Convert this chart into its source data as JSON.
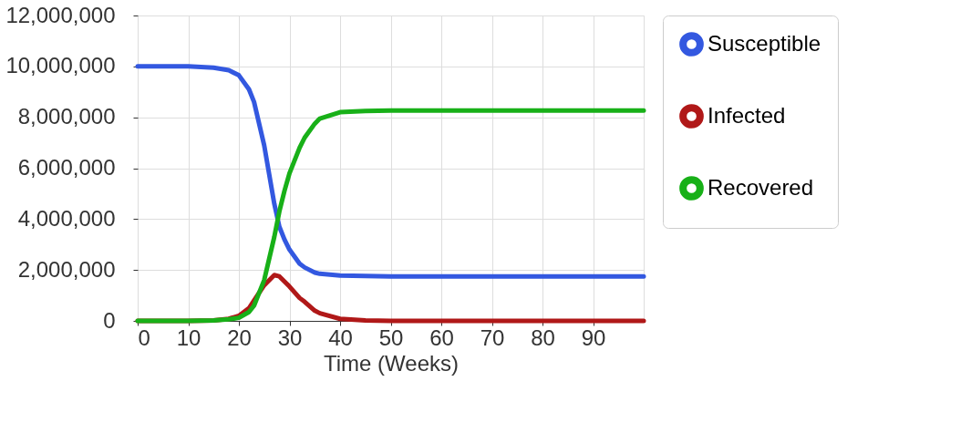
{
  "chart_data": {
    "type": "line",
    "xlabel": "Time (Weeks)",
    "xlim": [
      0,
      100
    ],
    "xticks": [
      0,
      10,
      20,
      30,
      40,
      50,
      60,
      70,
      80,
      90
    ],
    "ylim": [
      0,
      12000000
    ],
    "yticks": [
      {
        "value": 0,
        "label": "0"
      },
      {
        "value": 2000000,
        "label": "2,000,000"
      },
      {
        "value": 4000000,
        "label": "4,000,000"
      },
      {
        "value": 6000000,
        "label": "6,000,000"
      },
      {
        "value": 8000000,
        "label": "8,000,000"
      },
      {
        "value": 10000000,
        "label": "10,000,000"
      },
      {
        "value": 12000000,
        "label": "12,000,000"
      }
    ],
    "x": [
      0,
      10,
      15,
      18,
      20,
      22,
      23,
      25,
      27,
      28,
      29,
      30,
      32,
      33,
      35,
      36,
      40,
      45,
      50,
      60,
      70,
      80,
      90,
      100
    ],
    "series": [
      {
        "name": "Susceptible",
        "color": "#3358e0",
        "values": [
          10000000,
          10000000,
          9950000,
          9850000,
          9650000,
          9100000,
          8600000,
          6900000,
          4600000,
          3700000,
          3200000,
          2800000,
          2250000,
          2100000,
          1900000,
          1850000,
          1780000,
          1760000,
          1750000,
          1750000,
          1750000,
          1750000,
          1750000,
          1750000
        ]
      },
      {
        "name": "Infected",
        "color": "#b01818",
        "values": [
          0,
          0,
          20000,
          80000,
          200000,
          500000,
          800000,
          1400000,
          1800000,
          1750000,
          1550000,
          1350000,
          900000,
          750000,
          400000,
          300000,
          80000,
          20000,
          0,
          0,
          0,
          0,
          0,
          0
        ]
      },
      {
        "name": "Recovered",
        "color": "#18b018",
        "values": [
          0,
          0,
          20000,
          60000,
          120000,
          350000,
          600000,
          1600000,
          3300000,
          4300000,
          5100000,
          5800000,
          6800000,
          7200000,
          7750000,
          7950000,
          8200000,
          8250000,
          8270000,
          8270000,
          8270000,
          8270000,
          8270000,
          8270000
        ]
      }
    ],
    "grid": true,
    "legend": "right",
    "marker": "none",
    "line_style": "solid"
  }
}
